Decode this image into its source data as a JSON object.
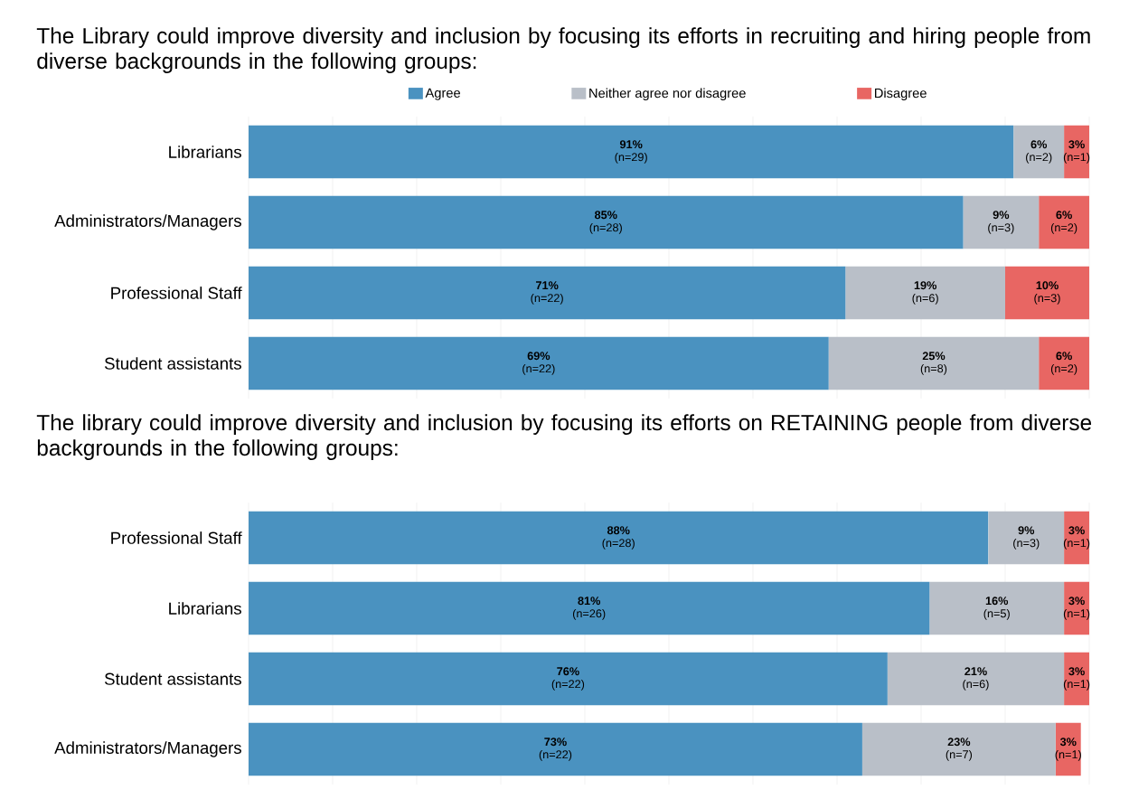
{
  "chart_data": [
    {
      "type": "bar",
      "orientation": "horizontal",
      "stacked": true,
      "title": "The Library could improve diversity and inclusion by focusing its efforts in recruiting and hiring people from diverse backgrounds in the following groups:",
      "categories": [
        "Librarians",
        "Administrators/Managers",
        "Professional Staff",
        "Student assistants"
      ],
      "series": [
        {
          "name": "Agree",
          "color": "#4a92c0",
          "values": [
            91,
            85,
            71,
            69
          ],
          "value_labels": [
            "**91%** (n=29)",
            "**85%** (n=28)",
            "**71%** (n=22)",
            "**69%** (n=22)"
          ]
        },
        {
          "name": "Neither agree nor disagree",
          "color": "#b9bfc8",
          "values": [
            6,
            9,
            19,
            25
          ],
          "value_labels": [
            "**6%** (n=2)",
            "**9%** (n=3)",
            "**19%** (n=6)",
            "**25%** (n=8)"
          ]
        },
        {
          "name": "Disagree",
          "color": "#e86663",
          "values": [
            3,
            6,
            10,
            6
          ],
          "value_labels": [
            "**3%** (n=1)",
            "**6%** (n=2)",
            "**10%** (n=3)",
            "**6%** (n=2)"
          ]
        }
      ],
      "xlim": [
        0,
        100
      ],
      "xticks": [
        {
          "value": 0,
          "label": null
        },
        {
          "value": 10,
          "label": null
        },
        {
          "value": 20,
          "label": null
        },
        {
          "value": 30,
          "label": null
        },
        {
          "value": 40,
          "label": null
        },
        {
          "value": 50,
          "label": null
        },
        {
          "value": 60,
          "label": null
        },
        {
          "value": 70,
          "label": null
        },
        {
          "value": 80,
          "label": null
        },
        {
          "value": 90,
          "label": null
        },
        {
          "value": 100,
          "label": null
        }
      ],
      "grid": "x",
      "legend": "top",
      "tick_labels": "y"
    },
    {
      "type": "bar",
      "orientation": "horizontal",
      "stacked": true,
      "title": "The library could improve diversity and inclusion by focusing its efforts on RETAINING people from diverse backgrounds in the following groups:",
      "categories": [
        "Professional Staff",
        "Librarians",
        "Student assistants",
        "Administrators/Managers"
      ],
      "series": [
        {
          "color": "#4a92c0",
          "values": [
            88,
            81,
            76,
            73
          ],
          "value_labels": [
            "**88%** (n=28)",
            "**81%** (n=26)",
            "**76%** (n=22)",
            "**73%** (n=22)"
          ]
        },
        {
          "color": "#b9bfc8",
          "values": [
            9,
            16,
            21,
            23
          ],
          "value_labels": [
            "**9%** (n=3)",
            "**16%** (n=5)",
            "**21%** (n=6)",
            "**23%** (n=7)"
          ]
        },
        {
          "color": "#e86663",
          "values": [
            3,
            3,
            3,
            3
          ],
          "value_labels": [
            "**3%** (n=1)",
            "**3%** (n=1)",
            "**3%** (n=1)",
            "**3%** (n=1)"
          ]
        }
      ],
      "xlim": [
        0,
        100
      ],
      "xticks": [
        {
          "value": 0,
          "label": null
        },
        {
          "value": 10,
          "label": null
        },
        {
          "value": 20,
          "label": null
        },
        {
          "value": 30,
          "label": null
        },
        {
          "value": 40,
          "label": null
        },
        {
          "value": 50,
          "label": null
        },
        {
          "value": 60,
          "label": null
        },
        {
          "value": 70,
          "label": null
        },
        {
          "value": 80,
          "label": null
        },
        {
          "value": 90,
          "label": null
        },
        {
          "value": 100,
          "label": null
        }
      ],
      "grid": "x",
      "tick_labels": "y"
    }
  ]
}
